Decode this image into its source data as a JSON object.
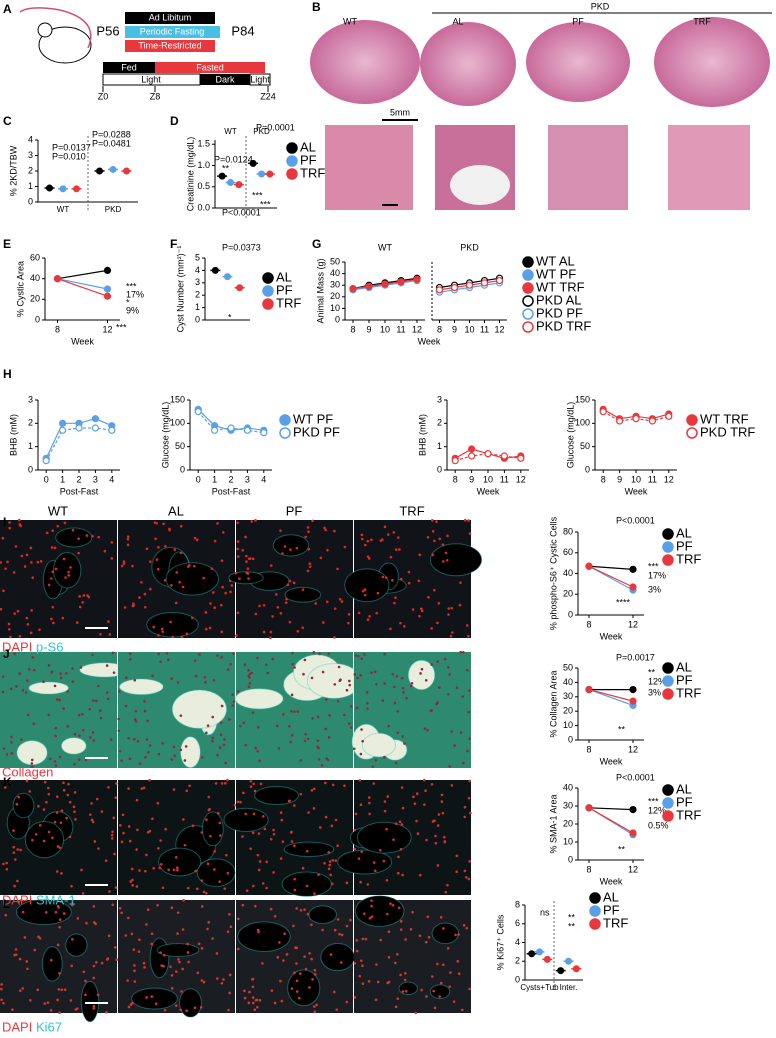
{
  "figure": {
    "panel_letters": [
      "A",
      "B",
      "C",
      "D",
      "E",
      "F",
      "G",
      "H",
      "I",
      "J",
      "K",
      "L"
    ],
    "A": {
      "diets": [
        "Ad Libitum",
        "Periodic Fasting",
        "Time-Restricted"
      ],
      "start": "P56",
      "end": "P84",
      "feeding": [
        "Fed",
        "Fasted"
      ],
      "light": [
        "Light",
        "Dark",
        "Light"
      ],
      "zeitgeber": [
        "Z0",
        "Z8",
        "Z24"
      ]
    },
    "B": {
      "wt": "WT",
      "pkd": "PKD",
      "groups": [
        "AL",
        "PF",
        "TRF"
      ],
      "scale_bar": "5mm"
    },
    "image_columns": [
      "WT",
      "AL",
      "PF",
      "TRF"
    ],
    "stains": {
      "I": [
        "DAPI",
        "p-S6"
      ],
      "J": [
        "Collagen"
      ],
      "K": [
        "DAPI",
        "SMA-1"
      ],
      "L": [
        "DAPI",
        "Ki67"
      ]
    }
  },
  "chart_data": [
    {
      "type": "dot",
      "ylabel": "% 2KD/TBW",
      "groups": [
        "WT",
        "PKD"
      ],
      "ylim": [
        0,
        4
      ],
      "yticks": [
        0,
        1,
        2,
        3,
        4
      ],
      "series": [
        {
          "color": "#000000",
          "values": [
            0.9,
            2.0
          ]
        },
        {
          "color": "#5aa0e6",
          "values": [
            0.85,
            2.1
          ]
        },
        {
          "color": "#e8383d",
          "values": [
            0.85,
            2.0
          ]
        }
      ],
      "annotations": [
        "P=0.0137",
        "P=0.010",
        "P=0.0288",
        "P=0.0481"
      ]
    },
    {
      "type": "dot",
      "ylabel": "Creatinine (mg/dL)",
      "groups": [
        "WT",
        "PKD"
      ],
      "ylim": [
        0,
        1.6
      ],
      "yticks": [
        {
          "value": 0,
          "label": "0.0"
        },
        0.5,
        {
          "value": 1,
          "label": "1.0"
        },
        1.5
      ],
      "series": [
        {
          "name": "AL",
          "color": "#000000",
          "values": [
            0.75,
            1.05
          ]
        },
        {
          "name": "PF",
          "color": "#5aa0e6",
          "values": [
            0.6,
            0.8
          ]
        },
        {
          "name": "TRF",
          "color": "#e8383d",
          "values": [
            0.55,
            0.8
          ]
        }
      ],
      "annotations": [
        "P=0.0124",
        "**",
        "P<0.0001",
        "P=0.0001",
        "***",
        "***"
      ]
    },
    {
      "type": "line",
      "ylabel": "% Cystic Area",
      "xlabel": "Week",
      "x": [
        8,
        12
      ],
      "xlim": [
        7,
        13
      ],
      "xticks": [
        8,
        12
      ],
      "ylim": [
        0,
        60
      ],
      "yticks": [
        0,
        20,
        40,
        60
      ],
      "series": [
        {
          "color": "#000000",
          "values": [
            40,
            48
          ]
        },
        {
          "color": "#5aa0e6",
          "values": [
            40,
            30
          ]
        },
        {
          "color": "#e8383d",
          "values": [
            40,
            23
          ]
        }
      ],
      "annotations": [
        "***",
        "17%",
        "*",
        "9%",
        "***"
      ]
    },
    {
      "type": "dot",
      "ylabel": "Cyst Number (mm²)⁻¹",
      "ylim": [
        0,
        5
      ],
      "yticks": [
        0,
        1,
        2,
        3,
        4,
        5
      ],
      "series": [
        {
          "name": "AL",
          "color": "#000000",
          "values": [
            4
          ]
        },
        {
          "name": "PF",
          "color": "#5aa0e6",
          "values": [
            3.5
          ]
        },
        {
          "name": "TRF",
          "color": "#e8383d",
          "values": [
            2.6
          ]
        }
      ],
      "annotations": [
        "P=0.0373",
        "*"
      ]
    },
    {
      "type": "line",
      "title": "WT",
      "ylabel": "Animal Mass (g)",
      "xlabel": "Week",
      "x": [
        8,
        9,
        10,
        11,
        12
      ],
      "xlim": [
        7.5,
        12.5
      ],
      "xticks": [
        8,
        9,
        10,
        11,
        12
      ],
      "ylim": [
        0,
        50
      ],
      "yticks": [
        0,
        10,
        20,
        30,
        40,
        50
      ],
      "series": [
        {
          "name": "WT AL",
          "color": "#000000",
          "values": [
            27,
            30,
            32,
            34,
            36
          ]
        },
        {
          "name": "WT PF",
          "color": "#5aa0e6",
          "values": [
            26,
            28,
            30,
            32,
            34
          ]
        },
        {
          "name": "WT TRF",
          "color": "#e8383d",
          "values": [
            27,
            29,
            31,
            33,
            35
          ]
        }
      ]
    },
    {
      "type": "line",
      "title": "PKD",
      "x": [
        8,
        9,
        10,
        11,
        12
      ],
      "xlim": [
        7.5,
        12.5
      ],
      "xticks": [
        8,
        9,
        10,
        11,
        12
      ],
      "ylim": [
        0,
        50
      ],
      "series": [
        {
          "name": "PKD AL",
          "color": "#000000",
          "marker": "open",
          "values": [
            28,
            30,
            32,
            34,
            36
          ]
        },
        {
          "name": "PKD PF",
          "color": "#5aa0e6",
          "marker": "open",
          "values": [
            24,
            26,
            28,
            30,
            32
          ]
        },
        {
          "name": "PKD TRF",
          "color": "#e8383d",
          "marker": "open",
          "values": [
            26,
            28,
            30,
            32,
            34
          ]
        }
      ]
    },
    {
      "type": "line",
      "ylabel": "BHB (mM)",
      "xlabel": "Post-Fast",
      "x": [
        0,
        1,
        2,
        3,
        4
      ],
      "xlim": [
        -0.5,
        4.5
      ],
      "xticks": [
        0,
        1,
        2,
        3,
        4
      ],
      "ylim": [
        0,
        3
      ],
      "yticks": [
        0,
        1,
        2,
        3
      ],
      "series": [
        {
          "color": "#5aa0e6",
          "values": [
            0.5,
            2.0,
            2.0,
            2.2,
            1.9
          ]
        },
        {
          "color": "#5aa0e6",
          "marker": "open",
          "dash": true,
          "values": [
            0.4,
            1.7,
            1.8,
            1.8,
            1.7
          ]
        }
      ]
    },
    {
      "type": "line",
      "ylabel": "Glucose (mg/dL)",
      "xlabel": "Post-Fast",
      "x": [
        0,
        1,
        2,
        3,
        4
      ],
      "xlim": [
        -0.5,
        4.5
      ],
      "xticks": [
        0,
        1,
        2,
        3,
        4
      ],
      "ylim": [
        0,
        150
      ],
      "yticks": [
        0,
        50,
        100,
        150
      ],
      "series": [
        {
          "name": "WT PF",
          "color": "#5aa0e6",
          "values": [
            130,
            95,
            85,
            90,
            85
          ]
        },
        {
          "name": "PKD PF",
          "color": "#5aa0e6",
          "marker": "open",
          "dash": true,
          "values": [
            125,
            85,
            90,
            85,
            80
          ]
        }
      ]
    },
    {
      "type": "line",
      "ylabel": "BHB (mM)",
      "xlabel": "Week",
      "x": [
        8,
        9,
        10,
        11,
        12
      ],
      "xlim": [
        7.5,
        12.5
      ],
      "xticks": [
        8,
        9,
        10,
        11,
        12
      ],
      "ylim": [
        0,
        3
      ],
      "yticks": [
        0,
        1,
        2,
        3
      ],
      "series": [
        {
          "color": "#e8383d",
          "values": [
            0.5,
            0.9,
            0.7,
            0.5,
            0.6
          ]
        },
        {
          "color": "#e8383d",
          "marker": "open",
          "dash": true,
          "values": [
            0.4,
            0.6,
            0.7,
            0.6,
            0.5
          ]
        }
      ]
    },
    {
      "type": "line",
      "ylabel": "Glucose (mg/dL)",
      "xlabel": "Week",
      "x": [
        8,
        9,
        10,
        11,
        12
      ],
      "xlim": [
        7.5,
        12.5
      ],
      "xticks": [
        8,
        9,
        10,
        11,
        12
      ],
      "ylim": [
        0,
        150
      ],
      "yticks": [
        0,
        50,
        100,
        150
      ],
      "series": [
        {
          "name": "WT TRF",
          "color": "#e8383d",
          "values": [
            130,
            110,
            115,
            110,
            120
          ]
        },
        {
          "name": "PKD TRF",
          "color": "#e8383d",
          "marker": "open",
          "dash": true,
          "values": [
            125,
            105,
            110,
            105,
            115
          ]
        }
      ]
    },
    {
      "type": "line",
      "ylabel": "% phospho-S6⁺ Cystic Cells",
      "xlabel": "Week",
      "x": [
        8,
        12
      ],
      "xlim": [
        7,
        13
      ],
      "xticks": [
        8,
        12
      ],
      "ylim": [
        0,
        80
      ],
      "yticks": [
        0,
        20,
        40,
        60,
        80
      ],
      "series": [
        {
          "name": "AL",
          "color": "#000000",
          "values": [
            47,
            44
          ]
        },
        {
          "name": "PF",
          "color": "#5aa0e6",
          "values": [
            47,
            24
          ]
        },
        {
          "name": "TRF",
          "color": "#e8383d",
          "values": [
            47,
            27
          ]
        }
      ],
      "annotations": [
        "P<0.0001",
        "***",
        "17%",
        "3%",
        "****"
      ]
    },
    {
      "type": "line",
      "ylabel": "% Collagen Area",
      "xlabel": "Week",
      "x": [
        8,
        12
      ],
      "xlim": [
        7,
        13
      ],
      "xticks": [
        8,
        12
      ],
      "ylim": [
        0,
        50
      ],
      "yticks": [
        0,
        10,
        20,
        30,
        40,
        50
      ],
      "series": [
        {
          "name": "AL",
          "color": "#000000",
          "values": [
            35,
            35
          ]
        },
        {
          "name": "PF",
          "color": "#5aa0e6",
          "values": [
            35,
            24
          ]
        },
        {
          "name": "TRF",
          "color": "#e8383d",
          "values": [
            35,
            27
          ]
        }
      ],
      "annotations": [
        "P=0.0017",
        "**",
        "12%",
        "3%",
        "**"
      ]
    },
    {
      "type": "line",
      "ylabel": "% SMA-1 Area",
      "xlabel": "Week",
      "x": [
        8,
        12
      ],
      "xlim": [
        7,
        13
      ],
      "xticks": [
        8,
        12
      ],
      "ylim": [
        0,
        40
      ],
      "yticks": [
        0,
        10,
        20,
        30,
        40
      ],
      "series": [
        {
          "name": "AL",
          "color": "#000000",
          "values": [
            29,
            28
          ]
        },
        {
          "name": "PF",
          "color": "#5aa0e6",
          "values": [
            29,
            14
          ]
        },
        {
          "name": "TRF",
          "color": "#e8383d",
          "values": [
            29,
            15
          ]
        }
      ],
      "annotations": [
        "P<0.0001",
        "***",
        "12%",
        "0.5%",
        "**"
      ]
    },
    {
      "type": "dot",
      "ylabel": "% Ki67⁺ Cells",
      "groups": [
        "Cysts+Tub",
        "Inter."
      ],
      "ylim": [
        0,
        8
      ],
      "yticks": [
        0,
        2,
        4,
        6,
        8
      ],
      "series": [
        {
          "name": "AL",
          "color": "#000000",
          "values": [
            2.8,
            1.0
          ]
        },
        {
          "name": "PF",
          "color": "#5aa0e6",
          "values": [
            3.0,
            2.0
          ]
        },
        {
          "name": "TRF",
          "color": "#e8383d",
          "values": [
            2.2,
            1.2
          ]
        }
      ],
      "annotations": [
        "ns",
        "**",
        "**"
      ]
    }
  ]
}
